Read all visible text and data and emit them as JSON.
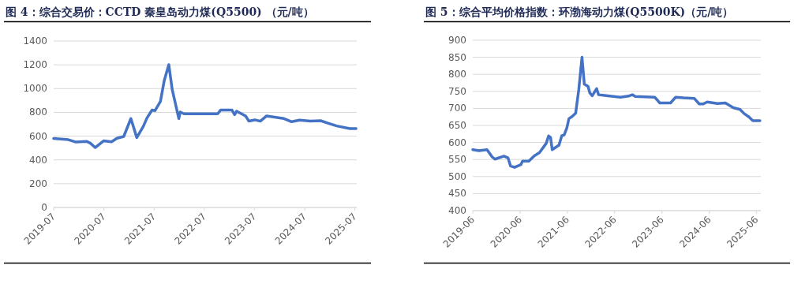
{
  "chart_data": [
    {
      "type": "line",
      "title": "图 4：综合交易价：CCTD 秦皇岛动力煤(Q5500)  （元/吨）",
      "ylim": [
        0,
        1400
      ],
      "yticks": [
        0,
        200,
        400,
        600,
        800,
        1000,
        1200,
        1400
      ],
      "xlim": [
        "2019-07-01",
        "2025-07-15"
      ],
      "xticks": [
        "2019-07",
        "2020-07",
        "2021-07",
        "2022-07",
        "2023-07",
        "2024-07",
        "2025-07"
      ],
      "grid": "y",
      "marker": "none",
      "line_style": "solid",
      "series": [
        {
          "color": "#4472c4",
          "x": [
            "2019-07-01",
            "2019-10-16",
            "2019-12-10",
            "2020-02-28",
            "2020-03-25",
            "2020-04-28",
            "2020-06-28",
            "2020-08-25",
            "2020-10-04",
            "2020-11-22",
            "2021-01-13",
            "2021-02-25",
            "2021-04-13",
            "2021-05-10",
            "2021-06-16",
            "2021-07-07",
            "2021-08-16",
            "2021-09-13",
            "2021-10-16",
            "2021-11-10",
            "2021-12-28",
            "2022-01-07",
            "2022-02-04",
            "2022-10-07",
            "2022-10-28",
            "2023-01-19",
            "2023-02-07",
            "2023-02-22",
            "2023-04-28",
            "2023-05-22",
            "2023-07-04",
            "2023-08-13",
            "2023-09-28",
            "2024-02-01",
            "2024-03-28",
            "2024-05-25",
            "2024-08-10",
            "2024-10-25",
            "2024-12-22",
            "2025-02-19",
            "2025-05-25",
            "2025-07-10"
          ],
          "values": [
            580,
            570,
            550,
            555,
            540,
            504,
            560,
            553,
            582,
            597,
            748,
            588,
            681,
            752,
            819,
            814,
            891,
            1069,
            1201,
            991,
            748,
            803,
            788,
            788,
            819,
            819,
            781,
            810,
            770,
            726,
            737,
            726,
            770,
            748,
            721,
            735,
            726,
            730,
            708,
            686,
            664,
            664
          ]
        }
      ]
    },
    {
      "type": "line",
      "title": "图 5：综合平均价格指数：环渤海动力煤(Q5500K)（元/吨）",
      "ylim": [
        400,
        900
      ],
      "yticks": [
        400,
        450,
        500,
        550,
        600,
        650,
        700,
        750,
        800,
        850,
        900
      ],
      "xlim": [
        "2019-06-01",
        "2025-07-05"
      ],
      "xticks": [
        "2019-06",
        "2020-06",
        "2021-06",
        "2022-06",
        "2023-06",
        "2024-06",
        "2025-06"
      ],
      "grid": "y",
      "marker": "none",
      "line_style": "solid",
      "series": [
        {
          "color": "#4472c4",
          "x": [
            "2019-06-01",
            "2019-07-19",
            "2019-09-19",
            "2019-10-28",
            "2019-11-19",
            "2020-01-28",
            "2020-02-28",
            "2020-03-19",
            "2020-04-19",
            "2020-06-07",
            "2020-06-19",
            "2020-08-07",
            "2020-09-19",
            "2020-10-28",
            "2020-12-19",
            "2021-01-07",
            "2021-01-22",
            "2021-02-04",
            "2021-03-28",
            "2021-04-19",
            "2021-05-07",
            "2021-05-28",
            "2021-06-13",
            "2021-07-07",
            "2021-08-04",
            "2021-08-28",
            "2021-09-22",
            "2021-10-10",
            "2021-11-07",
            "2021-11-22",
            "2021-12-10",
            "2022-01-13",
            "2022-01-28",
            "2022-03-16",
            "2022-07-16",
            "2022-09-16",
            "2022-10-16",
            "2022-11-07",
            "2023-04-07",
            "2023-05-07",
            "2023-05-16",
            "2023-08-07",
            "2023-09-16",
            "2023-11-16",
            "2024-02-07",
            "2024-03-16",
            "2024-04-16",
            "2024-05-16",
            "2024-08-04",
            "2024-10-04",
            "2024-12-04",
            "2025-01-25",
            "2025-02-25",
            "2025-04-04",
            "2025-05-04",
            "2025-06-28"
          ],
          "values": [
            579,
            576,
            579,
            558,
            551,
            560,
            555,
            531,
            527,
            535,
            545,
            545,
            561,
            570,
            597,
            619,
            615,
            579,
            592,
            620,
            622,
            643,
            670,
            676,
            686,
            755,
            850,
            771,
            765,
            745,
            737,
            758,
            740,
            738,
            733,
            736,
            740,
            735,
            733,
            720,
            716,
            716,
            733,
            731,
            729,
            713,
            713,
            719,
            714,
            716,
            702,
            697,
            685,
            675,
            664,
            664
          ]
        }
      ]
    }
  ]
}
